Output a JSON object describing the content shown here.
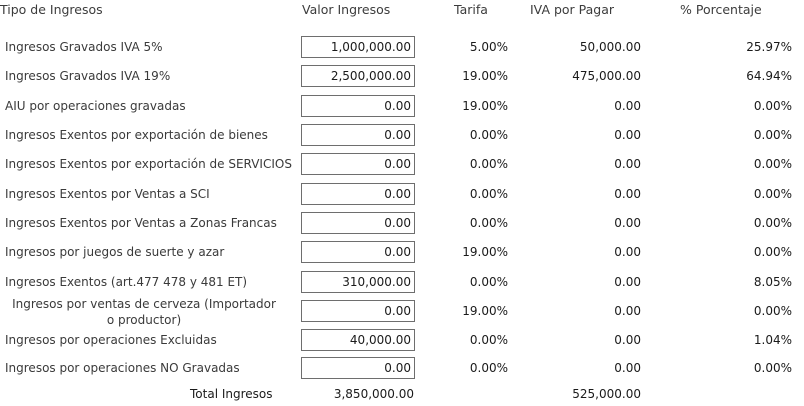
{
  "headers": {
    "tipo": "Tipo de Ingresos",
    "valor": "Valor Ingresos",
    "tarifa": "Tarifa",
    "iva": "IVA por Pagar",
    "pct": "% Porcentaje"
  },
  "rows": [
    {
      "label": "Ingresos Gravados IVA 5%",
      "valor": "1,000,000.00",
      "tarifa": "5.00%",
      "iva": "50,000.00",
      "pct": "25.97%"
    },
    {
      "label": "Ingresos Gravados IVA 19%",
      "valor": "2,500,000.00",
      "tarifa": "19.00%",
      "iva": "475,000.00",
      "pct": "64.94%"
    },
    {
      "label": "AIU por operaciones gravadas",
      "valor": "0.00",
      "tarifa": "19.00%",
      "iva": "0.00",
      "pct": "0.00%"
    },
    {
      "label": "Ingresos Exentos por exportación de bienes",
      "valor": "0.00",
      "tarifa": "0.00%",
      "iva": "0.00",
      "pct": "0.00%"
    },
    {
      "label": "Ingresos Exentos por exportación de SERVICIOS",
      "valor": "0.00",
      "tarifa": "0.00%",
      "iva": "0.00",
      "pct": "0.00%"
    },
    {
      "label": "Ingresos Exentos por Ventas a SCI",
      "valor": "0.00",
      "tarifa": "0.00%",
      "iva": "0.00",
      "pct": "0.00%"
    },
    {
      "label": "Ingresos Exentos por Ventas a Zonas Francas",
      "valor": "0.00",
      "tarifa": "0.00%",
      "iva": "0.00",
      "pct": "0.00%"
    },
    {
      "label": "Ingresos por juegos de suerte y azar",
      "valor": "0.00",
      "tarifa": "19.00%",
      "iva": "0.00",
      "pct": "0.00%"
    },
    {
      "label": "Ingresos Exentos (art.477 478 y 481 ET)",
      "valor": "310,000.00",
      "tarifa": "0.00%",
      "iva": "0.00",
      "pct": "8.05%"
    },
    {
      "label": "Ingresos por ventas de cerveza (Importador o productor)",
      "valor": "0.00",
      "tarifa": "19.00%",
      "iva": "0.00",
      "pct": "0.00%"
    },
    {
      "label": "Ingresos por operaciones Excluidas",
      "valor": "40,000.00",
      "tarifa": "0.00%",
      "iva": "0.00",
      "pct": "1.04%"
    },
    {
      "label": "Ingresos por operaciones NO Gravadas",
      "valor": "0.00",
      "tarifa": "0.00%",
      "iva": "0.00",
      "pct": "0.00%"
    }
  ],
  "totals": {
    "label": "Total Ingresos",
    "valor": "3,850,000.00",
    "iva": "525,000.00"
  }
}
